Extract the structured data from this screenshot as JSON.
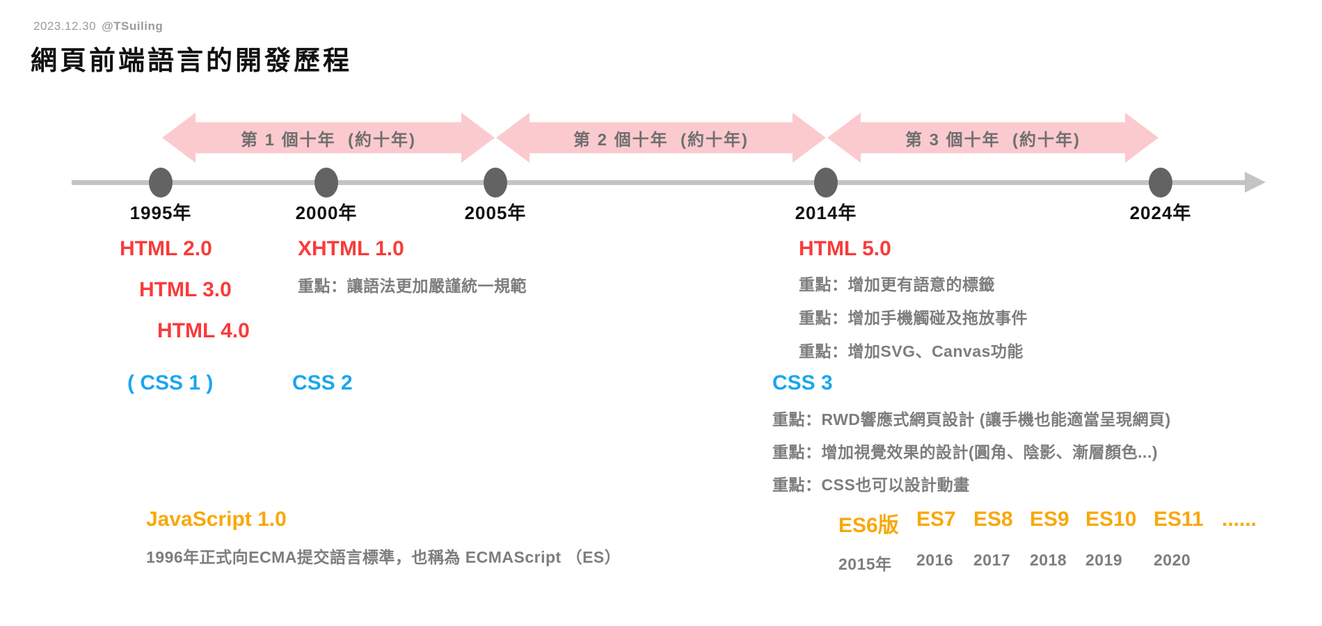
{
  "header": {
    "date": "2023.12.30",
    "handle": "@TSuiling",
    "title": "網頁前端語言的開發歷程"
  },
  "decades": [
    {
      "label": "第 1 個十年  (約十年)"
    },
    {
      "label": "第 2 個十年  (約十年)"
    },
    {
      "label": "第 3 個十年  (約十年)"
    }
  ],
  "timeline": {
    "years": [
      "1995年",
      "2000年",
      "2005年",
      "2014年",
      "2024年"
    ]
  },
  "html_track": {
    "early_versions": [
      "HTML 2.0",
      "HTML 3.0",
      "HTML 4.0"
    ],
    "xhtml": {
      "title": "XHTML 1.0",
      "note": "重點：讓語法更加嚴謹統一規範"
    },
    "html5": {
      "title": "HTML 5.0",
      "notes": [
        "重點：增加更有語意的標籤",
        "重點：增加手機觸碰及拖放事件",
        "重點：增加SVG、Canvas功能"
      ]
    }
  },
  "css_track": {
    "css1": "( CSS 1 )",
    "css2": "CSS 2",
    "css3": {
      "title": "CSS 3",
      "notes": [
        "重點：RWD響應式網頁設計 (讓手機也能適當呈現網頁)",
        "重點：增加視覺效果的設計(圓角、陰影、漸層顏色...)",
        "重點：CSS也可以設計動畫"
      ]
    }
  },
  "js_track": {
    "title": "JavaScript 1.0",
    "note": "1996年正式向ECMA提交語言標準，也稱為 ECMAScript （ES）",
    "es_versions": [
      "ES6版",
      "ES7",
      "ES8",
      "ES9",
      "ES10",
      "ES11",
      "......"
    ],
    "es_years": [
      "2015年",
      "2016",
      "2017",
      "2018",
      "2019",
      "2020"
    ]
  },
  "colors": {
    "arrow_pink": "#fbcace",
    "html_red": "#f93b3b",
    "css_blue": "#1aa6f0",
    "js_orange": "#f8a80a",
    "note_gray": "#7d7d7d",
    "timeline_gray": "#c4c4c4",
    "dot_gray": "#636363"
  }
}
